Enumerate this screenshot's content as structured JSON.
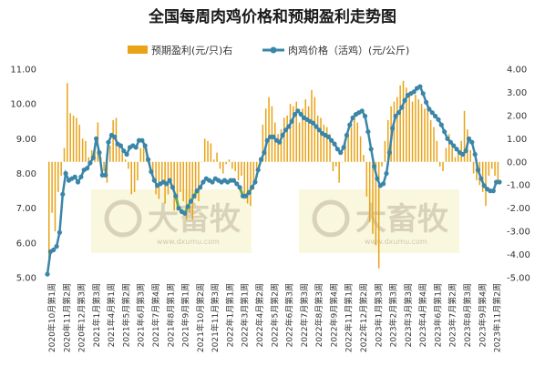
{
  "chart_data": {
    "type": "bar+line",
    "title": "全国每周肉鸡价格和预期盈利走势图",
    "legend": {
      "position": "top",
      "items": [
        {
          "label": "预期盈利(元/只)右",
          "kind": "bar",
          "color": "#e8a317"
        },
        {
          "label": "肉鸡价格（活鸡）(元/公斤)",
          "kind": "line",
          "color": "#3a85a8"
        }
      ]
    },
    "y_left": {
      "min": 5.0,
      "max": 11.0,
      "step": 1.0,
      "decimals": 2,
      "ticks": [
        "5.00",
        "6.00",
        "7.00",
        "8.00",
        "9.00",
        "10.00",
        "11.00"
      ]
    },
    "y_right": {
      "min": -5.0,
      "max": 4.0,
      "step": 1.0,
      "decimals": 2,
      "ticks": [
        "-5.00",
        "-4.00",
        "-3.00",
        "-2.00",
        "-1.00",
        "0.00",
        "1.00",
        "2.00",
        "3.00",
        "4.00"
      ]
    },
    "x_labels": [
      "2020年10月第1周",
      "2020年11月第2周",
      "2020年12月第3周",
      "2021年1月第3周",
      "2021年4月第1周",
      "2021年5月第2周",
      "2021年6月第3周",
      "2021年7月第4周",
      "2021年8月第1周",
      "2021年9月第1周",
      "2021年10月第2周",
      "2021年11月第3周",
      "2022年1月第1周",
      "2022年3月第1周",
      "2022年4月第2周",
      "2022年5月第2周",
      "2022年6月第3周",
      "2022年7月第3周",
      "2022年8月第3周",
      "2022年9月第4周",
      "2022年11月第1周",
      "2022年12月第2周",
      "2023年1月第3周",
      "2023年2月第3周",
      "2023年3月第3周",
      "2023年4月第4周",
      "2023年6月第1周",
      "2023年7月第2周",
      "2023年8月第3周",
      "2023年9月第4周",
      "2023年11月第2周"
    ],
    "gridlines": false,
    "price_series": {
      "name": "肉鸡价格（活鸡）(元/公斤)",
      "color": "#3a85a8",
      "values": [
        5.1,
        5.75,
        5.8,
        5.9,
        6.3,
        7.4,
        8.0,
        7.8,
        7.85,
        7.9,
        7.75,
        7.9,
        8.1,
        8.15,
        8.3,
        8.45,
        9.0,
        8.6,
        7.95,
        7.95,
        8.9,
        9.1,
        9.05,
        8.85,
        8.8,
        8.65,
        8.55,
        8.75,
        8.8,
        8.75,
        8.95,
        8.95,
        8.8,
        8.4,
        8.05,
        7.8,
        7.65,
        7.7,
        7.75,
        7.7,
        7.8,
        7.6,
        7.35,
        7.0,
        6.9,
        6.85,
        7.05,
        7.2,
        7.35,
        7.5,
        7.6,
        7.75,
        7.85,
        7.8,
        7.75,
        7.85,
        7.8,
        7.75,
        7.8,
        7.75,
        7.8,
        7.8,
        7.7,
        7.6,
        7.35,
        7.35,
        7.45,
        7.6,
        7.75,
        8.1,
        8.4,
        8.6,
        8.95,
        9.05,
        9.05,
        8.95,
        8.9,
        9.1,
        9.25,
        9.35,
        9.5,
        9.7,
        9.8,
        9.7,
        9.6,
        9.55,
        9.5,
        9.45,
        9.35,
        9.25,
        9.15,
        9.1,
        9.05,
        8.95,
        8.85,
        8.7,
        8.6,
        8.75,
        9.1,
        9.4,
        9.6,
        9.7,
        9.75,
        9.8,
        9.65,
        9.2,
        8.7,
        8.2,
        7.85,
        7.65,
        7.7,
        8.0,
        8.6,
        9.3,
        9.65,
        9.75,
        9.9,
        10.1,
        10.25,
        10.3,
        10.35,
        10.45,
        10.5,
        10.3,
        10.05,
        9.85,
        9.75,
        9.65,
        9.55,
        9.4,
        9.2,
        9.0,
        8.9,
        8.8,
        8.7,
        8.6,
        8.55,
        8.65,
        9.0,
        8.9,
        8.55,
        8.1,
        7.85,
        7.65,
        7.55,
        7.5,
        7.5,
        7.75,
        7.75
      ]
    },
    "profit_series": {
      "name": "预期盈利(元/只)右",
      "color": "#e8a317",
      "values": [
        -4.3,
        -2.2,
        -3.0,
        -1.3,
        -0.6,
        0.6,
        3.4,
        2.1,
        2.0,
        1.9,
        1.6,
        1.0,
        0.9,
        0.2,
        0.5,
        0.6,
        1.7,
        0.2,
        -0.4,
        -0.9,
        0.7,
        1.8,
        1.9,
        0.8,
        0.4,
        0.1,
        -0.3,
        -1.4,
        -1.3,
        -0.8,
        0.6,
        0.9,
        0.6,
        -0.1,
        -0.6,
        -1.4,
        -1.6,
        -1.0,
        -1.8,
        -1.4,
        -1.1,
        -2.1,
        -2.1,
        -1.3,
        -1.7,
        -2.5,
        -2.2,
        -2.5,
        -1.6,
        -1.7,
        0.0,
        1.0,
        0.9,
        0.8,
        0.1,
        0.4,
        -0.3,
        -0.5,
        -0.1,
        0.1,
        -0.3,
        -0.4,
        -0.8,
        -0.6,
        -1.6,
        -1.8,
        -1.9,
        -1.2,
        -0.4,
        0.2,
        1.6,
        2.3,
        2.8,
        2.4,
        1.7,
        1.2,
        1.4,
        1.9,
        2.0,
        2.5,
        2.4,
        2.6,
        1.7,
        2.3,
        2.7,
        2.4,
        3.1,
        2.8,
        2.0,
        1.9,
        1.6,
        1.5,
        1.2,
        -0.4,
        -0.2,
        -0.9,
        0.0,
        0.8,
        1.2,
        1.5,
        1.9,
        1.7,
        1.1,
        0.3,
        -1.5,
        -2.6,
        -3.1,
        -3.6,
        -4.6,
        -0.2,
        0.9,
        1.8,
        2.4,
        2.6,
        2.8,
        3.3,
        3.5,
        3.2,
        3.0,
        2.6,
        2.9,
        2.7,
        2.5,
        2.3,
        2.3,
        1.8,
        1.5,
        0.9,
        -0.2,
        -0.4,
        0.6,
        1.2,
        0.6,
        0.2,
        0.3,
        0.9,
        2.2,
        1.4,
        0.5,
        -0.5,
        -0.8,
        -1.0,
        -1.3,
        -1.9,
        -0.6,
        -0.3,
        -0.6,
        -0.8
      ]
    },
    "highlight_segment": {
      "from_index": 42,
      "to_index": 50,
      "color": "#6aa84f"
    },
    "highlight_segment_2": {
      "from_index": 63,
      "to_index": 67,
      "color": "#6aa84f"
    }
  },
  "watermark": {
    "text": "大畜牧",
    "subtext": "www.dxumu.com"
  }
}
